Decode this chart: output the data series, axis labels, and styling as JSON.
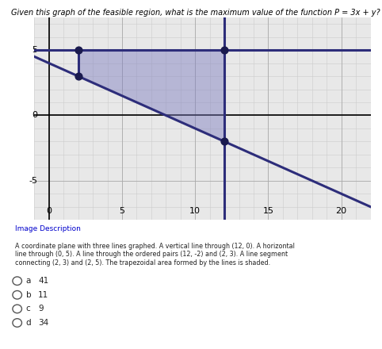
{
  "title": "Given this graph of the feasible region, what is the maximum value of the function P = 3x + y?",
  "title_fontsize": 7,
  "xlim": [
    -1,
    22
  ],
  "ylim": [
    -8,
    7.5
  ],
  "xticks": [
    0,
    5,
    10,
    15,
    20
  ],
  "yticks": [
    -5,
    0,
    5
  ],
  "background_color": "#e8e8e8",
  "plot_bg_color": "#e8e8e8",
  "line_color": "#2d2d7a",
  "line_width": 2.2,
  "shade_color": "#7b7bbf",
  "shade_alpha": 0.45,
  "vertical_line_x": 12,
  "horizontal_line_y": 5,
  "diagonal_points": [
    [
      2,
      3
    ],
    [
      12,
      -2
    ]
  ],
  "segment_points": [
    [
      2,
      3
    ],
    [
      2,
      5
    ]
  ],
  "trap_vertices": [
    [
      2,
      5
    ],
    [
      12,
      5
    ],
    [
      12,
      -2
    ],
    [
      2,
      3
    ]
  ],
  "corner_dots": [
    [
      2,
      5
    ],
    [
      2,
      3
    ],
    [
      12,
      5
    ],
    [
      12,
      -2
    ]
  ],
  "dot_color": "#1a1a4e",
  "dot_size": 40,
  "minor_grid_color": "#cccccc",
  "minor_grid_lw": 0.4,
  "major_grid_color": "#aaaaaa",
  "major_grid_lw": 0.6,
  "axis_lw": 1.2,
  "desc_title": "Image Description",
  "desc_body": "A coordinate plane with three lines graphed. A vertical line through (12, 0). A horizontal line through (0, 5). A line through the ordered pairs (12, -2) and (2, 3). A line segment connecting (2, 3) and (2, 5). The trapezoidal area formed by the lines is shaded.",
  "options": [
    {
      "label": "a",
      "value": "41"
    },
    {
      "label": "b",
      "value": "11"
    },
    {
      "label": "c",
      "value": "9"
    },
    {
      "label": "d",
      "value": "34"
    }
  ]
}
